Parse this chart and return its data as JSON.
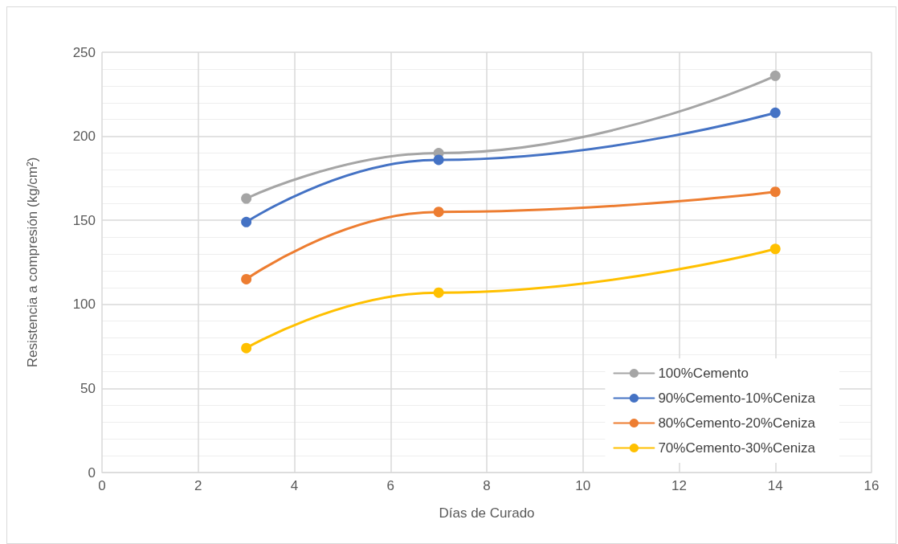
{
  "chart_data": {
    "type": "line",
    "xlabel": "Días de Curado",
    "ylabel": "Resistencia a compresión (kg/cm²)",
    "x": [
      3,
      7,
      14
    ],
    "series": [
      {
        "name": "100%Cemento",
        "color": "#a5a5a5",
        "values": [
          163,
          190,
          236
        ]
      },
      {
        "name": "90%Cemento-10%Ceniza",
        "color": "#4472c4",
        "values": [
          149,
          186,
          214
        ]
      },
      {
        "name": "80%Cemento-20%Ceniza",
        "color": "#ed7d31",
        "values": [
          115,
          155,
          167
        ]
      },
      {
        "name": "70%Cemento-30%Ceniza",
        "color": "#ffc000",
        "values": [
          74,
          107,
          133
        ]
      }
    ],
    "xlim": [
      0,
      16
    ],
    "xticks": [
      0,
      2,
      4,
      6,
      8,
      10,
      12,
      14,
      16
    ],
    "ylim": [
      0,
      250
    ],
    "yticks": [
      0,
      50,
      100,
      150,
      200,
      250
    ],
    "grid": true,
    "legend": "bottom right",
    "marker": "circle",
    "line_style": "solid"
  }
}
